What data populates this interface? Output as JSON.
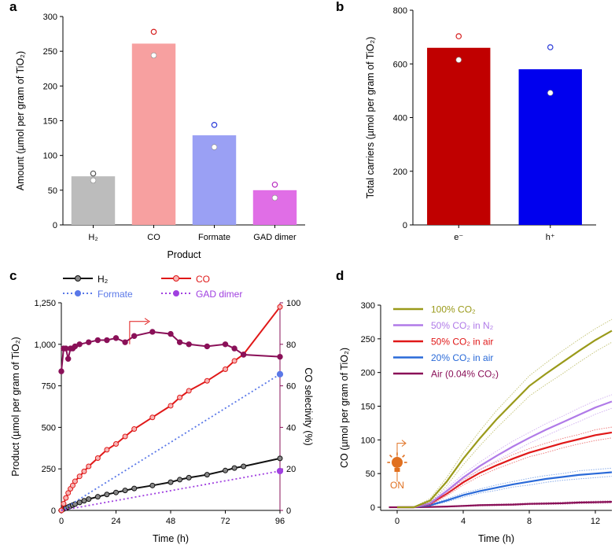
{
  "chart_data": [
    {
      "panel": "a",
      "type": "bar",
      "xlabel": "Product",
      "ylabel": "Amount (µmol per gram of TiO₂)",
      "ylim": [
        0,
        300
      ],
      "yticks": [
        0,
        50,
        100,
        150,
        200,
        250,
        300
      ],
      "categories": [
        "H₂",
        "CO",
        "Formate",
        "GAD dimer"
      ],
      "values": [
        70,
        261,
        129,
        50
      ],
      "replicates_open": [
        74,
        278,
        144,
        58
      ],
      "replicates_filled": [
        64,
        244,
        112,
        39
      ],
      "bar_colors": [
        "#bcbcbc",
        "#f7a0a0",
        "#9aa0f4",
        "#e06ee6"
      ],
      "marker_colors": [
        "#555555",
        "#d62020",
        "#2a3ad8",
        "#b82cc0"
      ]
    },
    {
      "panel": "b",
      "type": "bar",
      "ylabel": "Total carriers (µmol per gram of TiO₂)",
      "ylim": [
        0,
        800
      ],
      "yticks": [
        0,
        200,
        400,
        600,
        800
      ],
      "categories": [
        "e⁻",
        "h⁺"
      ],
      "values": [
        660,
        580
      ],
      "replicates_open": [
        703,
        662
      ],
      "replicates_filled": [
        615,
        492
      ],
      "bar_colors": [
        "#c00000",
        "#0000ee"
      ],
      "marker_colors": [
        "#d62020",
        "#2a3ad8"
      ],
      "tick_label_colors": [
        "#c00000",
        "#0000ee"
      ]
    },
    {
      "panel": "c",
      "type": "line",
      "xlabel": "Time (h)",
      "ylabel": "Product (µmol per gram of TiO₂)",
      "y2label": "CO selectivity (%)",
      "xlim": [
        0,
        96
      ],
      "ylim": [
        0,
        1250
      ],
      "y2lim": [
        0,
        100
      ],
      "xticks": [
        0,
        24,
        48,
        72,
        96
      ],
      "yticks": [
        0,
        250,
        500,
        750,
        1000,
        1250
      ],
      "ytick_labels": [
        "0",
        "250",
        "500",
        "750",
        "1,000",
        "1,250"
      ],
      "y2ticks": [
        0,
        20,
        40,
        60,
        80,
        100
      ],
      "legend": [
        "H₂",
        "CO",
        "Formate",
        "GAD dimer"
      ],
      "series": [
        {
          "name": "H₂",
          "color": "#111111",
          "x": [
            0,
            1,
            2,
            3,
            4,
            5,
            6,
            8,
            10,
            12,
            16,
            20,
            24,
            28,
            32,
            40,
            48,
            52,
            56,
            64,
            72,
            76,
            80,
            96
          ],
          "y": [
            0,
            8,
            14,
            20,
            26,
            32,
            38,
            48,
            58,
            68,
            82,
            96,
            108,
            120,
            132,
            150,
            170,
            185,
            197,
            215,
            240,
            255,
            265,
            313
          ]
        },
        {
          "name": "CO",
          "color": "#e01818",
          "x": [
            0,
            1,
            2,
            3,
            4,
            5,
            6,
            8,
            10,
            12,
            16,
            20,
            24,
            28,
            32,
            40,
            48,
            52,
            56,
            64,
            72,
            76,
            80,
            96
          ],
          "y": [
            0,
            40,
            75,
            105,
            130,
            150,
            175,
            205,
            235,
            265,
            315,
            365,
            400,
            445,
            490,
            560,
            630,
            680,
            720,
            780,
            850,
            900,
            940,
            1225
          ]
        },
        {
          "name": "Formate",
          "color": "#5a78e8",
          "x": [
            0,
            96
          ],
          "y": [
            0,
            820
          ]
        },
        {
          "name": "GAD dimer",
          "color": "#a040e0",
          "x": [
            0,
            96
          ],
          "y": [
            0,
            237
          ]
        },
        {
          "name": "CO selectivity",
          "axis": "right",
          "color": "#8a1058",
          "x": [
            0,
            1,
            2,
            3,
            4,
            5,
            6,
            8,
            12,
            16,
            20,
            24,
            28,
            32,
            40,
            48,
            52,
            56,
            64,
            72,
            76,
            80,
            96
          ],
          "y": [
            67,
            78,
            78,
            73,
            78,
            78,
            79,
            80,
            81,
            82,
            82,
            83,
            81,
            84,
            86,
            85,
            81,
            80,
            79,
            80,
            78,
            75,
            74
          ]
        }
      ],
      "annotation_arrow": "right"
    },
    {
      "panel": "d",
      "type": "line",
      "xlabel": "Time (h)",
      "ylabel": "CO (µmol per gram of TiO₂)",
      "xlim": [
        -1,
        13
      ],
      "ylim": [
        0,
        300
      ],
      "xticks": [
        0,
        4,
        8,
        12
      ],
      "yticks": [
        0,
        50,
        100,
        150,
        200,
        250,
        300
      ],
      "annotation": "ON",
      "series": [
        {
          "name": "100% CO₂",
          "color": "#9a9a1a",
          "x": [
            0,
            1,
            2,
            3,
            4,
            5,
            6,
            7,
            8,
            9,
            10,
            11,
            12,
            13
          ],
          "y": [
            0,
            0,
            10,
            38,
            72,
            102,
            130,
            155,
            180,
            198,
            215,
            232,
            248,
            262
          ],
          "band": [
            0,
            0,
            3,
            6,
            9,
            11,
            13,
            14,
            15,
            16,
            17,
            17,
            17,
            17
          ]
        },
        {
          "name": "50% CO₂ in N₂",
          "color": "#b07ae8",
          "x": [
            0,
            1,
            2,
            3,
            4,
            5,
            6,
            7,
            8,
            9,
            10,
            11,
            12,
            13
          ],
          "y": [
            0,
            0,
            6,
            24,
            44,
            61,
            76,
            90,
            103,
            115,
            126,
            137,
            148,
            157
          ],
          "band": [
            0,
            0,
            2,
            4,
            5,
            6,
            7,
            8,
            8,
            9,
            9,
            10,
            10,
            10
          ]
        },
        {
          "name": "50% CO₂ in air",
          "color": "#e01818",
          "x": [
            0,
            1,
            2,
            3,
            4,
            5,
            6,
            7,
            8,
            9,
            10,
            11,
            12,
            13
          ],
          "y": [
            0,
            0,
            5,
            20,
            37,
            51,
            62,
            72,
            81,
            88,
            95,
            101,
            107,
            111
          ],
          "band": [
            0,
            0,
            2,
            3,
            4,
            5,
            5,
            6,
            6,
            7,
            7,
            7,
            8,
            8
          ]
        },
        {
          "name": "20% CO₂ in air",
          "color": "#2a6ad8",
          "x": [
            0,
            1,
            2,
            3,
            4,
            5,
            6,
            7,
            8,
            9,
            10,
            11,
            12,
            13
          ],
          "y": [
            0,
            0,
            3,
            10,
            18,
            24,
            29,
            34,
            38,
            42,
            45,
            48,
            50,
            52
          ],
          "band": [
            0,
            0,
            1,
            2,
            3,
            3,
            4,
            4,
            5,
            5,
            5,
            6,
            6,
            6
          ]
        },
        {
          "name": "Air (0.04% CO₂)",
          "color": "#8a1058",
          "x": [
            0,
            1,
            2,
            3,
            4,
            5,
            6,
            7,
            8,
            9,
            10,
            11,
            12,
            13
          ],
          "y": [
            0,
            0,
            0.5,
            1,
            2,
            3,
            3.5,
            4,
            5,
            5.5,
            6,
            7,
            7.5,
            8
          ],
          "band": [
            0,
            0,
            0.4,
            0.6,
            0.8,
            1,
            1,
            1.2,
            1.2,
            1.4,
            1.4,
            1.5,
            1.5,
            1.6
          ]
        }
      ]
    }
  ],
  "panel_labels": [
    "a",
    "b",
    "c",
    "d"
  ]
}
